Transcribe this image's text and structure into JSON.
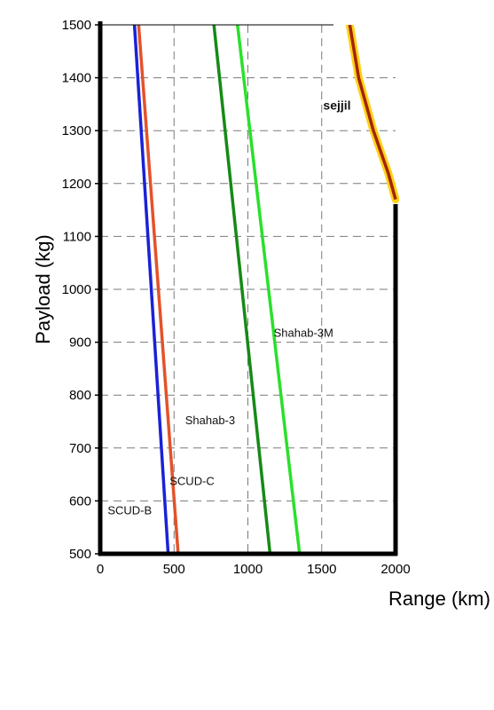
{
  "chart_data": {
    "type": "line",
    "xlabel": "Range (km)",
    "ylabel": "Payload (kg)",
    "xlim": [
      0,
      2000
    ],
    "ylim": [
      500,
      1500
    ],
    "xticks": [
      "0",
      "500",
      "1000",
      "1500",
      "2000"
    ],
    "yticks": [
      "500",
      "600",
      "700",
      "800",
      "900",
      "1000",
      "1100",
      "1200",
      "1300",
      "1400",
      "1500"
    ],
    "grid": true,
    "series": [
      {
        "name": "SCUD-B",
        "color": "#1a22d6",
        "x": [
          232,
          460
        ],
        "y": [
          1500,
          500
        ]
      },
      {
        "name": "SCUD-C",
        "color": "#e4522a",
        "x": [
          260,
          528
        ],
        "y": [
          1500,
          500
        ]
      },
      {
        "name": "Shahab-3",
        "color": "#168a16",
        "x": [
          770,
          1150
        ],
        "y": [
          1500,
          500
        ]
      },
      {
        "name": "Shahab-3M",
        "color": "#2ae02a",
        "x": [
          930,
          1350
        ],
        "y": [
          1500,
          500
        ]
      },
      {
        "name": "sejjil",
        "color": "#a32400",
        "halo": "#ffd21a",
        "x": [
          1690,
          1750,
          1850,
          1950,
          2000
        ],
        "y": [
          1500,
          1400,
          1300,
          1220,
          1170
        ]
      }
    ]
  }
}
